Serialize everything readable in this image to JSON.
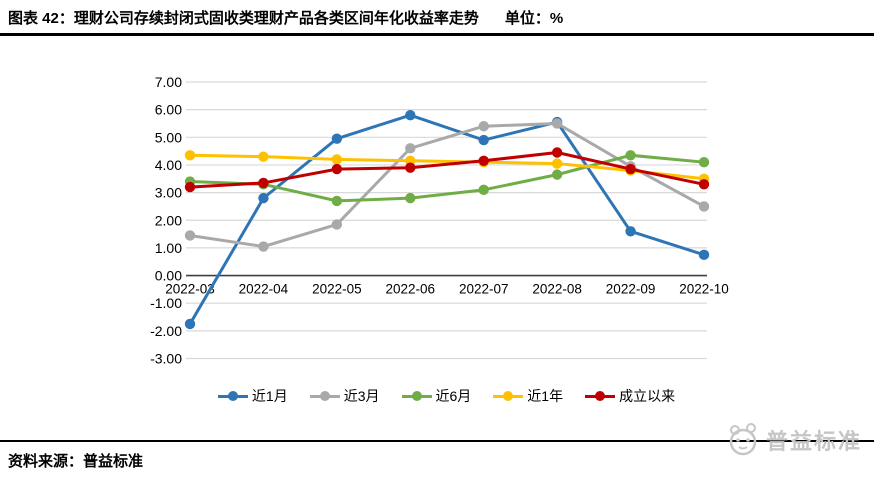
{
  "header": {
    "title": "图表 42：理财公司存续封闭式固收类理财产品各类区间年化收益率走势",
    "unit": "单位：%"
  },
  "footer": {
    "source": "资料来源：普益标准",
    "logo_text": "普益标准",
    "logo_icon": "panda-face-icon"
  },
  "colors": {
    "grid": "#d9d9d9",
    "axis": "#404040",
    "text": "#000000",
    "rule": "#000000",
    "logo": "#c6c6c6"
  },
  "chart_data": {
    "type": "line",
    "title": "理财公司存续封闭式固收类理财产品各类区间年化收益率走势",
    "unit": "%",
    "categories": [
      "2022-03",
      "2022-04",
      "2022-05",
      "2022-06",
      "2022-07",
      "2022-08",
      "2022-09",
      "2022-10"
    ],
    "series": [
      {
        "name": "近1月",
        "color": "#2e75b6",
        "values": [
          -1.75,
          2.8,
          4.95,
          5.8,
          4.9,
          5.55,
          1.6,
          0.75
        ]
      },
      {
        "name": "近3月",
        "color": "#a9a9a9",
        "values": [
          1.45,
          1.05,
          1.85,
          4.6,
          5.4,
          5.5,
          3.95,
          2.5
        ]
      },
      {
        "name": "近6月",
        "color": "#70ad47",
        "values": [
          3.4,
          3.3,
          2.7,
          2.8,
          3.1,
          3.65,
          4.35,
          4.1
        ]
      },
      {
        "name": "近1年",
        "color": "#ffc000",
        "values": [
          4.35,
          4.3,
          4.2,
          4.15,
          4.1,
          4.05,
          3.8,
          3.5
        ]
      },
      {
        "name": "成立以来",
        "color": "#c00000",
        "values": [
          3.2,
          3.35,
          3.85,
          3.9,
          4.15,
          4.45,
          3.85,
          3.3
        ]
      }
    ],
    "y_ticks": [
      7,
      6,
      5,
      4,
      3,
      2,
      1,
      0,
      -1,
      -2,
      -3
    ],
    "ylim": [
      -3,
      7
    ],
    "y_tick_decimals": 2,
    "grid": true,
    "legend_position": "bottom"
  }
}
